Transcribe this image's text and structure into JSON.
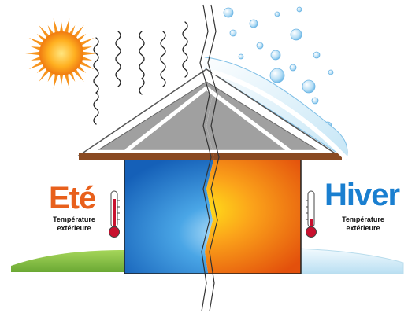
{
  "labels": {
    "summer": {
      "title": "Eté",
      "subtitle_line1": "Température",
      "subtitle_line2": "extérieure"
    },
    "winter": {
      "title": "Hiver",
      "subtitle_line1": "Température",
      "subtitle_line2": "extérieure"
    }
  },
  "colors": {
    "summer_text": "#e8601c",
    "winter_text": "#1a7fd0",
    "sun": "#f7941d",
    "sun_core": "#ffd24a",
    "roof": "#a0a0a0",
    "roof_border": "#6a6a6a",
    "eave": "#8a4a22",
    "wall_blue": "#2f86d9",
    "wall_orange": "#f07a12",
    "grass": "#8cc63f",
    "snow": "#d8eef8",
    "thermometer": "#c8102e"
  },
  "icons": [
    "sun-icon",
    "heat-wave-icon",
    "snow-bubble-icon",
    "thermometer-icon",
    "crack-line-icon"
  ]
}
